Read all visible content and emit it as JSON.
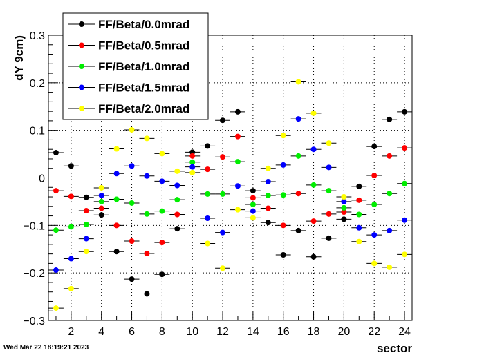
{
  "chart_data": {
    "type": "scatter",
    "title": "",
    "xlabel": "sector",
    "ylabel": "dY 9cm)",
    "xlim": [
      0.5,
      24.5
    ],
    "ylim": [
      -0.3,
      0.3
    ],
    "grid": true,
    "legend_position": "top-left",
    "x_ticks": [
      "2",
      "4",
      "6",
      "8",
      "10",
      "12",
      "14",
      "16",
      "18",
      "20",
      "22",
      "24"
    ],
    "y_ticks": [
      "0.3",
      "0.2",
      "0.1",
      "0",
      "−0.1",
      "−0.2",
      "−0.3"
    ],
    "x": [
      1,
      2,
      3,
      4,
      5,
      6,
      7,
      8,
      9,
      10,
      11,
      12,
      13,
      14,
      15,
      16,
      17,
      18,
      19,
      20,
      21,
      22,
      23,
      24
    ],
    "series": [
      {
        "name": "FF/Beta/0.0mrad",
        "color": "#000000",
        "values": [
          0.053,
          0.025,
          -0.041,
          -0.078,
          -0.155,
          -0.213,
          -0.244,
          -0.203,
          -0.107,
          0.054,
          0.067,
          0.121,
          0.139,
          -0.027,
          -0.094,
          -0.162,
          -0.111,
          -0.166,
          -0.127,
          -0.087,
          -0.018,
          0.066,
          0.123,
          0.139
        ]
      },
      {
        "name": "FF/Beta/0.5mrad",
        "color": "#ff0000",
        "values": [
          -0.027,
          -0.039,
          -0.069,
          -0.064,
          -0.1,
          -0.133,
          -0.159,
          -0.136,
          -0.077,
          0.046,
          0.018,
          0.044,
          0.087,
          -0.042,
          -0.064,
          -0.1,
          -0.033,
          -0.091,
          -0.076,
          -0.072,
          -0.047,
          0.005,
          0.046,
          0.063
        ]
      },
      {
        "name": "FF/Beta/1.0mrad",
        "color": "#00ee00",
        "values": [
          -0.11,
          -0.103,
          -0.098,
          -0.05,
          -0.045,
          -0.053,
          -0.076,
          -0.07,
          -0.046,
          0.033,
          -0.034,
          -0.034,
          0.034,
          -0.056,
          -0.037,
          -0.036,
          0.046,
          -0.015,
          -0.027,
          -0.063,
          -0.077,
          -0.056,
          -0.033,
          -0.012
        ]
      },
      {
        "name": "FF/Beta/1.5mrad",
        "color": "#0000ff",
        "values": [
          -0.194,
          -0.17,
          -0.128,
          -0.037,
          0.009,
          0.025,
          0.004,
          -0.007,
          -0.016,
          0.023,
          -0.085,
          -0.115,
          -0.017,
          -0.07,
          -0.008,
          0.027,
          0.124,
          0.06,
          0.022,
          -0.05,
          -0.105,
          -0.12,
          -0.111,
          -0.089
        ]
      },
      {
        "name": "FF/Beta/2.0mrad",
        "color": "#ffff00",
        "values": [
          -0.274,
          -0.233,
          -0.155,
          -0.021,
          0.061,
          0.101,
          0.083,
          0.051,
          0.014,
          0.011,
          -0.138,
          -0.19,
          -0.067,
          -0.084,
          0.02,
          0.089,
          0.202,
          0.136,
          0.073,
          -0.04,
          -0.134,
          -0.18,
          -0.188,
          -0.161
        ]
      }
    ]
  },
  "footer": {
    "timestamp": "Wed Mar 22 18:19:21 2023"
  }
}
